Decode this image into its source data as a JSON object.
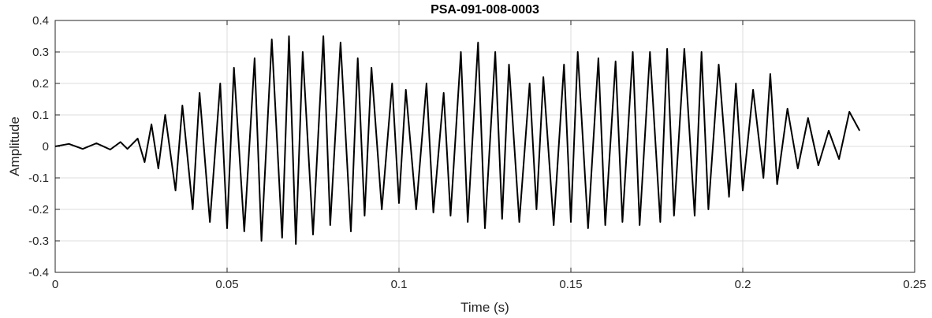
{
  "chart_data": {
    "type": "line",
    "title": "PSA-091-008-0003",
    "xlabel": "Time (s)",
    "ylabel": "Amplitude",
    "xlim": [
      0,
      0.25
    ],
    "ylim": [
      -0.4,
      0.4
    ],
    "grid": true,
    "x_ticks": [
      0,
      0.05,
      0.1,
      0.15,
      0.2,
      0.25
    ],
    "x_tick_labels": [
      "0",
      "0.05",
      "0.1",
      "0.15",
      "0.2",
      "0.25"
    ],
    "y_ticks": [
      -0.4,
      -0.3,
      -0.2,
      -0.1,
      0,
      0.1,
      0.2,
      0.3,
      0.4
    ],
    "y_tick_labels": [
      "-0.4",
      "-0.3",
      "-0.2",
      "-0.1",
      "0",
      "0.1",
      "0.2",
      "0.3",
      "0.4"
    ],
    "line_color": "#000000",
    "series": [
      {
        "x": [
          0,
          0.004,
          0.008,
          0.012,
          0.016,
          0.019,
          0.021,
          0.024,
          0.026,
          0.028,
          0.03,
          0.032,
          0.035,
          0.037,
          0.04,
          0.042,
          0.045,
          0.048,
          0.05,
          0.052,
          0.055,
          0.058,
          0.06,
          0.063,
          0.066,
          0.068,
          0.07,
          0.072,
          0.075,
          0.078,
          0.08,
          0.083,
          0.086,
          0.088,
          0.09,
          0.092,
          0.095,
          0.098,
          0.1,
          0.102,
          0.105,
          0.108,
          0.11,
          0.113,
          0.115,
          0.118,
          0.12,
          0.123,
          0.125,
          0.128,
          0.13,
          0.132,
          0.135,
          0.138,
          0.14,
          0.142,
          0.145,
          0.148,
          0.15,
          0.152,
          0.155,
          0.158,
          0.16,
          0.163,
          0.165,
          0.168,
          0.17,
          0.173,
          0.176,
          0.178,
          0.18,
          0.183,
          0.186,
          0.188,
          0.19,
          0.193,
          0.196,
          0.198,
          0.2,
          0.203,
          0.206,
          0.208,
          0.21,
          0.213,
          0.216,
          0.219,
          0.222,
          0.225,
          0.228,
          0.231,
          0.234
        ],
        "y": [
          0,
          0.008,
          -0.008,
          0.01,
          -0.01,
          0.014,
          -0.008,
          0.025,
          -0.05,
          0.07,
          -0.07,
          0.1,
          -0.14,
          0.13,
          -0.2,
          0.17,
          -0.24,
          0.2,
          -0.26,
          0.25,
          -0.27,
          0.28,
          -0.3,
          0.34,
          -0.29,
          0.35,
          -0.31,
          0.3,
          -0.28,
          0.35,
          -0.25,
          0.33,
          -0.27,
          0.28,
          -0.22,
          0.25,
          -0.2,
          0.2,
          -0.18,
          0.18,
          -0.2,
          0.2,
          -0.21,
          0.17,
          -0.22,
          0.3,
          -0.24,
          0.33,
          -0.26,
          0.3,
          -0.23,
          0.26,
          -0.24,
          0.2,
          -0.2,
          0.22,
          -0.25,
          0.26,
          -0.24,
          0.3,
          -0.26,
          0.28,
          -0.25,
          0.27,
          -0.24,
          0.3,
          -0.25,
          0.3,
          -0.24,
          0.31,
          -0.22,
          0.31,
          -0.22,
          0.3,
          -0.2,
          0.26,
          -0.16,
          0.2,
          -0.14,
          0.18,
          -0.1,
          0.23,
          -0.12,
          0.12,
          -0.07,
          0.09,
          -0.06,
          0.05,
          -0.04,
          0.11,
          0.05
        ]
      }
    ]
  }
}
